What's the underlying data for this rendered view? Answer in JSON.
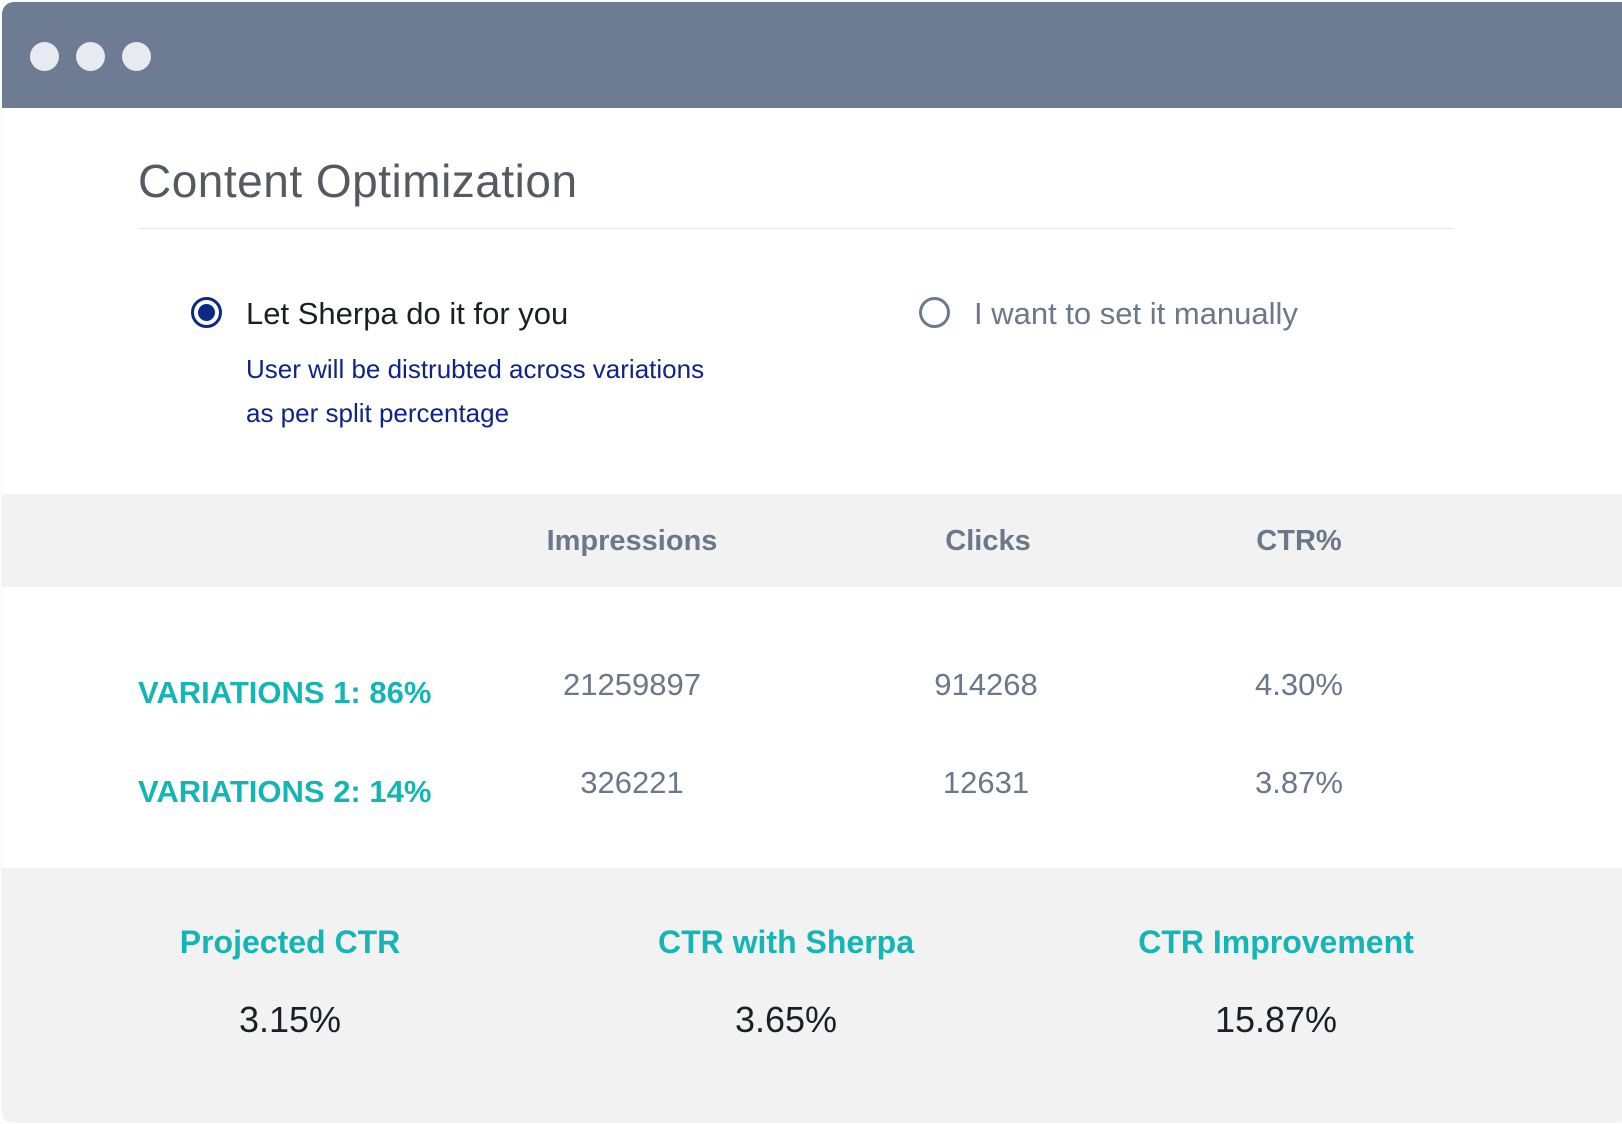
{
  "window": {
    "controls": [
      "window-dot-icon",
      "window-dot-icon",
      "window-dot-icon"
    ],
    "titlebar_color": "#6d7c93"
  },
  "page": {
    "title": "Content Optimization"
  },
  "options": {
    "auto": {
      "label": "Let Sherpa do it for you",
      "selected": true,
      "description_line1": "User will be distrubted across variations",
      "description_line2": "as per split percentage"
    },
    "manual": {
      "label": "I want to set it manually",
      "selected": false
    }
  },
  "table": {
    "columns": [
      "Impressions",
      "Clicks",
      "CTR%"
    ],
    "rows": [
      {
        "label": "VARIATIONS 1: 86%",
        "impressions": "21259897",
        "clicks": "914268",
        "ctr": "4.30%"
      },
      {
        "label": "VARIATIONS 2: 14%",
        "impressions": "326221",
        "clicks": "12631",
        "ctr": "3.87%"
      }
    ]
  },
  "summary": [
    {
      "label": "Projected CTR",
      "value": "3.15%"
    },
    {
      "label": "CTR with Sherpa",
      "value": "3.65%"
    },
    {
      "label": "CTR Improvement",
      "value": "15.87%"
    }
  ],
  "colors": {
    "accent_teal": "#16b5b5",
    "radio_selected": "#0b2a86",
    "description_text": "#10238a",
    "muted_text": "#6a7889",
    "band_background": "#f2f2f2"
  }
}
